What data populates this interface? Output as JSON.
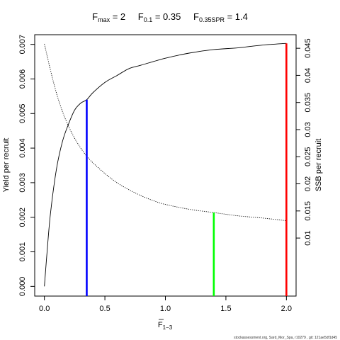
{
  "chart_data": {
    "type": "line",
    "title": {
      "fmax_label": "F",
      "fmax_sub": "max",
      "fmax_value": " = 2",
      "f01_label": "F",
      "f01_sub": "0.1",
      "f01_value": " = 0.35",
      "fspr_label": "F",
      "fspr_sub": "0.35SPR",
      "fspr_value": " = 1.4"
    },
    "xlabel": {
      "symbol": "F",
      "subscript": "1−3"
    },
    "ylabel_left": "Yield per recruit",
    "ylabel_right": "SSB per recruit",
    "x_ticks": [
      "0.0",
      "0.5",
      "1.0",
      "1.5",
      "2.0"
    ],
    "x_tick_values": [
      0,
      0.5,
      1.0,
      1.5,
      2.0
    ],
    "y_left_ticks": [
      "0.000",
      "0.001",
      "0.002",
      "0.003",
      "0.004",
      "0.005",
      "0.006",
      "0.007"
    ],
    "y_left_tick_values": [
      0,
      0.001,
      0.002,
      0.003,
      0.004,
      0.005,
      0.006,
      0.007
    ],
    "y_right_ticks": [
      "0.01",
      "0.015",
      "0.02",
      "0.025",
      "0.03",
      "0.035",
      "0.04",
      "0.045"
    ],
    "y_right_tick_values": [
      0.01,
      0.015,
      0.02,
      0.025,
      0.03,
      0.035,
      0.04,
      0.045
    ],
    "xlim": [
      -0.08,
      2.08
    ],
    "ylim_left": [
      -0.00028,
      0.00728
    ],
    "ylim_right": [
      -0.0007,
      0.0475
    ],
    "series": [
      {
        "axis": "left",
        "style": "solid",
        "color": "#000000",
        "x": [
          0,
          0.02,
          0.05,
          0.1,
          0.15,
          0.2,
          0.25,
          0.3,
          0.35,
          0.4,
          0.5,
          0.6,
          0.7,
          0.8,
          1.0,
          1.2,
          1.4,
          1.6,
          1.8,
          2.0
        ],
        "y": [
          0,
          0.0009,
          0.0021,
          0.0034,
          0.0042,
          0.0047,
          0.0051,
          0.0053,
          0.0054,
          0.0056,
          0.0059,
          0.0061,
          0.0063,
          0.0064,
          0.0066,
          0.00675,
          0.00685,
          0.0069,
          0.00698,
          0.00703
        ]
      },
      {
        "axis": "right",
        "style": "dotted",
        "color": "#000000",
        "x": [
          0,
          0.05,
          0.1,
          0.15,
          0.2,
          0.25,
          0.3,
          0.35,
          0.4,
          0.5,
          0.6,
          0.7,
          0.8,
          0.9,
          1.0,
          1.2,
          1.4,
          1.6,
          1.8,
          2.0
        ],
        "y": [
          0.0458,
          0.041,
          0.0367,
          0.0333,
          0.0306,
          0.0284,
          0.0266,
          0.0251,
          0.0239,
          0.0219,
          0.0202,
          0.0189,
          0.0178,
          0.0169,
          0.0162,
          0.0153,
          0.0147,
          0.0141,
          0.0137,
          0.0132
        ]
      }
    ],
    "reference_lines": [
      {
        "x": 0.35,
        "axis": "left",
        "y": 0.0054,
        "color": "#0000ff"
      },
      {
        "x": 1.4,
        "axis": "right",
        "y": 0.0147,
        "color": "#00ff00"
      },
      {
        "x": 2.0,
        "axis": "left",
        "y": 0.00703,
        "color": "#ff0000"
      }
    ],
    "footer": "stockassessment.org, Sard_Mor_Spa, r10279 , git: 121ae5df1d45"
  }
}
